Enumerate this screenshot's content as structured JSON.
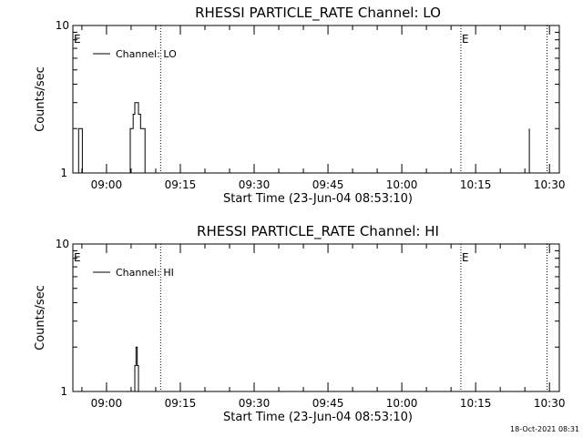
{
  "chart_data": [
    {
      "type": "line",
      "title": "RHESSI PARTICLE_RATE Channel: LO",
      "xlabel": "Start Time (23-Jun-04 08:53:10)",
      "ylabel": "Counts/sec",
      "y_scale": "log",
      "ylim": [
        1,
        10
      ],
      "y_tick_labels": [
        "1",
        "10"
      ],
      "xlim": [
        "08:53:10",
        "10:32:00"
      ],
      "x_tick_labels": [
        "09:00",
        "09:15",
        "09:30",
        "09:45",
        "10:00",
        "10:15",
        "10:30"
      ],
      "legend": {
        "label": "Channel: LO",
        "position": "top-left"
      },
      "event_markers": [
        {
          "time": "08:53:10",
          "label": "E"
        },
        {
          "time": "10:12:00",
          "label": "E"
        }
      ],
      "dotted_lines": [
        "09:11:00",
        "10:12:00",
        "10:29:30"
      ],
      "series": [
        {
          "name": "Channel: LO",
          "segments": [
            [
              [
                "08:54:00",
                1
              ],
              [
                "08:54:20",
                2
              ],
              [
                "08:54:45",
                2
              ],
              [
                "08:55:05",
                1
              ]
            ],
            [
              [
                "09:04:20",
                1
              ],
              [
                "09:04:50",
                2
              ],
              [
                "09:05:25",
                2.5
              ],
              [
                "09:05:45",
                3
              ],
              [
                "09:06:10",
                3
              ],
              [
                "09:06:30",
                2.5
              ],
              [
                "09:06:55",
                2
              ],
              [
                "09:07:25",
                2
              ],
              [
                "09:07:50",
                1
              ]
            ],
            [
              [
                "10:25:30",
                1
              ],
              [
                "10:25:40",
                1
              ],
              [
                "10:25:55",
                2
              ]
            ]
          ]
        }
      ]
    },
    {
      "type": "line",
      "title": "RHESSI PARTICLE_RATE Channel: HI",
      "xlabel": "Start Time (23-Jun-04 08:53:10)",
      "ylabel": "Counts/sec",
      "y_scale": "log",
      "ylim": [
        1,
        10
      ],
      "y_tick_labels": [
        "1",
        "10"
      ],
      "xlim": [
        "08:53:10",
        "10:32:00"
      ],
      "x_tick_labels": [
        "09:00",
        "09:15",
        "09:30",
        "09:45",
        "10:00",
        "10:15",
        "10:30"
      ],
      "legend": {
        "label": "Channel: HI",
        "position": "top-left"
      },
      "event_markers": [
        {
          "time": "08:53:10",
          "label": "E"
        },
        {
          "time": "10:12:00",
          "label": "E"
        }
      ],
      "dotted_lines": [
        "09:11:00",
        "10:12:00",
        "10:29:30"
      ],
      "series": [
        {
          "name": "Channel: HI",
          "segments": [
            [
              [
                "09:05:30",
                1
              ],
              [
                "09:05:45",
                1.5
              ],
              [
                "09:06:00",
                2
              ],
              [
                "09:06:15",
                1.5
              ],
              [
                "09:06:30",
                1
              ]
            ]
          ]
        }
      ]
    }
  ],
  "footer": {
    "timestamp": "18-Oct-2021 08:31"
  }
}
